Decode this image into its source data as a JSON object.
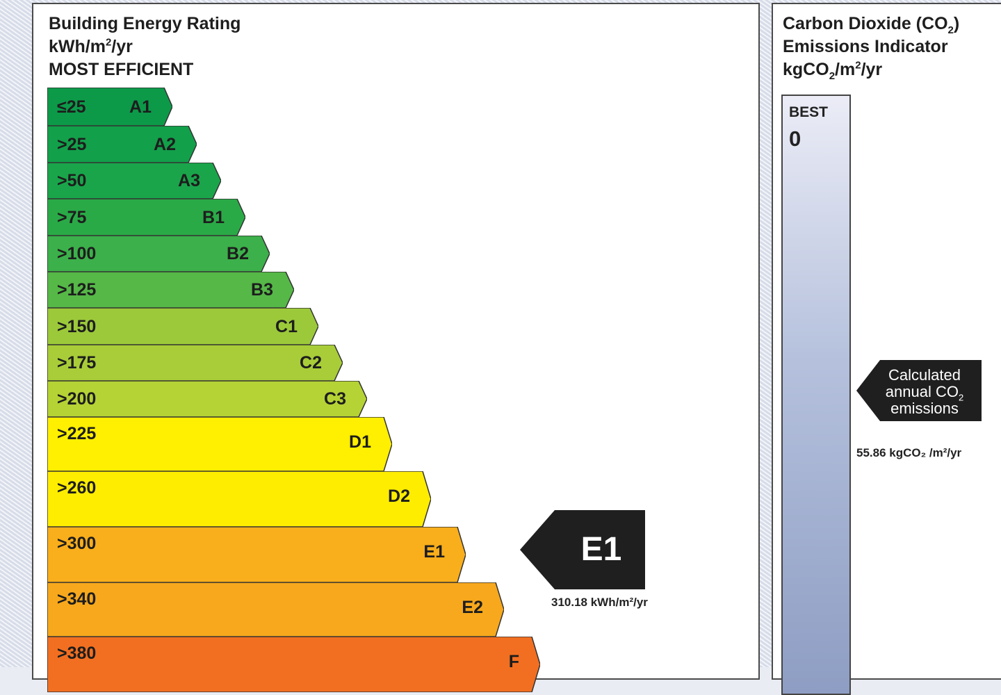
{
  "ber": {
    "title": "Building Energy Rating",
    "unit_prefix": "kWh/m",
    "unit_exp": "2",
    "unit_suffix": "/yr",
    "subtitle": "MOST EFFICIENT",
    "bands": [
      {
        "limit": "≤25",
        "grade": "A1",
        "color": "#0c9a49"
      },
      {
        "limit": ">25",
        "grade": "A2",
        "color": "#12a04a"
      },
      {
        "limit": ">50",
        "grade": "A3",
        "color": "#1aa54b"
      },
      {
        "limit": ">75",
        "grade": "B1",
        "color": "#2aaa47"
      },
      {
        "limit": ">100",
        "grade": "B2",
        "color": "#3cb04a"
      },
      {
        "limit": ">125",
        "grade": "B3",
        "color": "#55b847"
      },
      {
        "limit": ">150",
        "grade": "C1",
        "color": "#9cc93a"
      },
      {
        "limit": ">175",
        "grade": "C2",
        "color": "#a8cd38"
      },
      {
        "limit": ">200",
        "grade": "C3",
        "color": "#b5d334"
      },
      {
        "limit": ">225",
        "grade": "D1",
        "color": "#ffef00"
      },
      {
        "limit": ">260",
        "grade": "D2",
        "color": "#ffed00"
      },
      {
        "limit": ">300",
        "grade": "E1",
        "color": "#f9ae1b"
      },
      {
        "limit": ">340",
        "grade": "E2",
        "color": "#f7a81c"
      },
      {
        "limit": ">380",
        "grade": "F",
        "color": "#f26f21"
      }
    ],
    "marker": {
      "grade": "E1",
      "value": "310.18 kWh/m²/yr"
    }
  },
  "co2": {
    "title_1": "Carbon Dioxide (CO",
    "title_sub": "2",
    "title_2": ")",
    "title_line2": "Emissions Indicator",
    "unit_1": "kgCO",
    "unit_sub": "2",
    "unit_2": "/m",
    "unit_exp": "2",
    "unit_3": "/yr",
    "best_label": "BEST",
    "best_value": "0",
    "marker_line1": "Calculated",
    "marker_line2a": "annual CO",
    "marker_line2sub": "2",
    "marker_line3": "emissions",
    "value": "55.86 kgCO₂ /m²/yr"
  }
}
